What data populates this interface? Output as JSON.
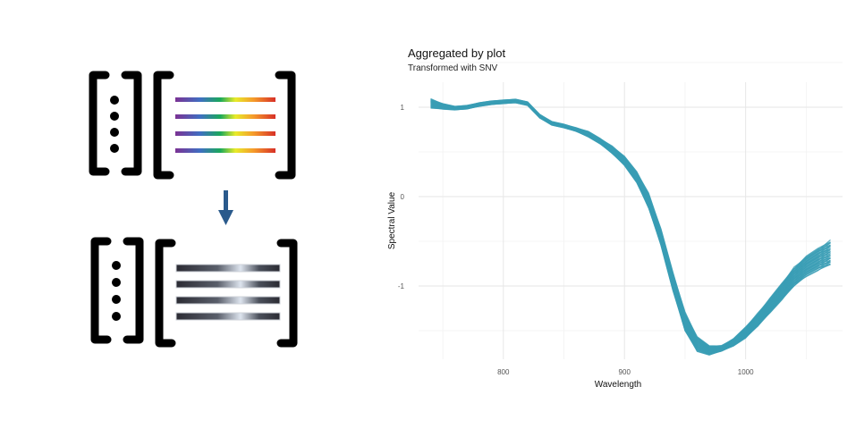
{
  "chart_data": {
    "type": "line",
    "title": "Aggregated by plot",
    "subtitle": "Transformed with SNV",
    "xlabel": "Wavelength",
    "ylabel": "Spectral Value",
    "xlim": [
      730,
      1080
    ],
    "ylim": [
      -1.82,
      1.28
    ],
    "x_ticks": [
      800,
      900,
      1000
    ],
    "y_ticks": [
      1,
      0,
      -1
    ],
    "grid": true,
    "series_color": "#3a9db5",
    "series_count": 40,
    "x": [
      740,
      750,
      760,
      770,
      780,
      790,
      800,
      810,
      820,
      830,
      840,
      850,
      860,
      870,
      880,
      890,
      900,
      910,
      920,
      930,
      940,
      950,
      960,
      970,
      980,
      990,
      1000,
      1010,
      1020,
      1030,
      1040,
      1050,
      1060,
      1070
    ],
    "mean_spectrum": [
      1.04,
      1.01,
      0.99,
      1.0,
      1.03,
      1.05,
      1.06,
      1.07,
      1.04,
      0.9,
      0.82,
      0.79,
      0.75,
      0.7,
      0.62,
      0.52,
      0.4,
      0.22,
      -0.05,
      -0.45,
      -0.95,
      -1.4,
      -1.65,
      -1.72,
      -1.7,
      -1.63,
      -1.52,
      -1.38,
      -1.22,
      -1.06,
      -0.9,
      -0.78,
      -0.7,
      -0.63
    ],
    "spread": [
      0.05,
      0.03,
      0.02,
      0.02,
      0.02,
      0.02,
      0.02,
      0.02,
      0.02,
      0.02,
      0.02,
      0.02,
      0.02,
      0.03,
      0.03,
      0.04,
      0.05,
      0.06,
      0.08,
      0.09,
      0.1,
      0.1,
      0.08,
      0.05,
      0.03,
      0.04,
      0.06,
      0.07,
      0.08,
      0.09,
      0.1,
      0.11,
      0.12,
      0.13
    ]
  },
  "diagram": {
    "rainbow_colors": [
      "#7b3294",
      "#c2185b",
      "#e8eb2a",
      "#d73027"
    ],
    "gray_colors": [
      "#2b2b33",
      "#dde4ee",
      "#2b2b33"
    ],
    "arrow_color": "#2a5a8c"
  }
}
